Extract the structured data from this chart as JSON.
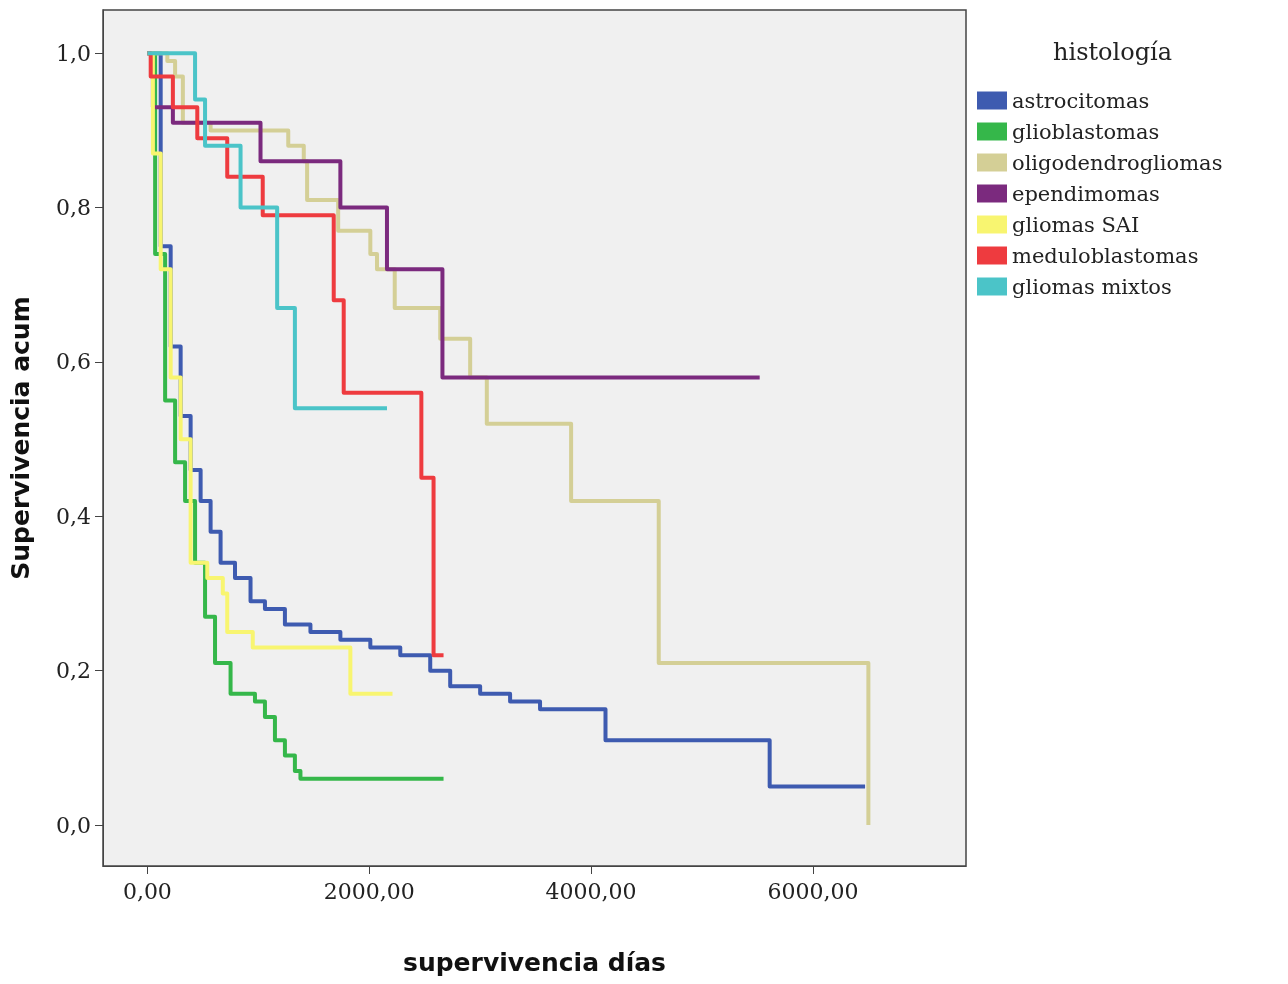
{
  "chart_data": {
    "type": "step",
    "xlabel": "supervivencia días",
    "ylabel": "Supervivencia acum",
    "legend_title": "histología",
    "legend": "top right",
    "marker": "none",
    "line_style": "solid",
    "grid": false,
    "xlim": [
      -400,
      7380
    ],
    "ylim": [
      -0.053,
      1.056
    ],
    "xticks": [
      {
        "value": 0,
        "label": "0,00"
      },
      {
        "value": 2000,
        "label": "2000,00"
      },
      {
        "value": 4000,
        "label": "4000,00"
      },
      {
        "value": 6000,
        "label": "6000,00"
      }
    ],
    "yticks": [
      {
        "value": 0,
        "label": "0,0"
      },
      {
        "value": 0.2,
        "label": "0,2"
      },
      {
        "value": 0.4,
        "label": "0,4"
      },
      {
        "value": 0.6,
        "label": "0,6"
      },
      {
        "value": 0.8,
        "label": "0,8"
      },
      {
        "value": 1,
        "label": "1,0"
      }
    ],
    "series": [
      {
        "name": "astrocitomas",
        "color": "#3e5bb0",
        "x": [
          0,
          120,
          210,
          300,
          390,
          480,
          570,
          660,
          790,
          930,
          1060,
          1240,
          1470,
          1740,
          2010,
          2280,
          2550,
          2730,
          3000,
          3270,
          3540,
          4080,
          4130,
          5610,
          6470
        ],
        "values": [
          1,
          0.75,
          0.62,
          0.53,
          0.46,
          0.42,
          0.38,
          0.34,
          0.32,
          0.29,
          0.28,
          0.26,
          0.25,
          0.24,
          0.23,
          0.22,
          0.2,
          0.18,
          0.17,
          0.16,
          0.15,
          0.15,
          0.11,
          0.05,
          0.05
        ]
      },
      {
        "name": "glioblastomas",
        "color": "#35b74a",
        "x": [
          0,
          70,
          160,
          250,
          340,
          430,
          520,
          610,
          750,
          970,
          1060,
          1150,
          1240,
          1330,
          1380,
          2670
        ],
        "values": [
          1,
          0.74,
          0.55,
          0.47,
          0.42,
          0.34,
          0.27,
          0.21,
          0.17,
          0.16,
          0.14,
          0.11,
          0.09,
          0.07,
          0.06,
          0.06
        ]
      },
      {
        "name": "oligodendrogliomas",
        "color": "#d4cf96",
        "x": [
          0,
          180,
          250,
          320,
          570,
          1270,
          1410,
          1440,
          1720,
          2010,
          2070,
          2230,
          2640,
          2910,
          3060,
          3820,
          4610,
          6500
        ],
        "values": [
          1,
          0.99,
          0.97,
          0.91,
          0.9,
          0.88,
          0.86,
          0.81,
          0.77,
          0.74,
          0.72,
          0.67,
          0.63,
          0.58,
          0.52,
          0.42,
          0.21,
          0
        ]
      },
      {
        "name": "ependimomas",
        "color": "#7b2a7e",
        "x": [
          0,
          50,
          230,
          1020,
          1740,
          2160,
          2660,
          5520
        ],
        "values": [
          1,
          0.93,
          0.91,
          0.86,
          0.8,
          0.72,
          0.58,
          0.58
        ]
      },
      {
        "name": "gliomas SAI",
        "color": "#f8f570",
        "x": [
          0,
          50,
          120,
          210,
          300,
          390,
          540,
          680,
          720,
          950,
          1830,
          2210
        ],
        "values": [
          1,
          0.87,
          0.72,
          0.58,
          0.5,
          0.34,
          0.32,
          0.3,
          0.25,
          0.23,
          0.17,
          0.17
        ]
      },
      {
        "name": "meduloblastomas",
        "color": "#ee3b3f",
        "x": [
          0,
          30,
          230,
          450,
          720,
          1040,
          1680,
          1770,
          2470,
          2580,
          2670
        ],
        "values": [
          1,
          0.97,
          0.93,
          0.89,
          0.84,
          0.79,
          0.68,
          0.56,
          0.45,
          0.22,
          0.22
        ]
      },
      {
        "name": "gliomas mixtos",
        "color": "#4bc4c8",
        "x": [
          0,
          430,
          520,
          840,
          1170,
          1330,
          2160
        ],
        "values": [
          1,
          0.94,
          0.88,
          0.8,
          0.67,
          0.54,
          0.54
        ]
      }
    ]
  }
}
